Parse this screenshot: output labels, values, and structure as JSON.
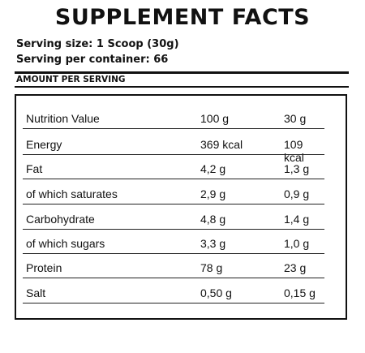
{
  "title": "SUPPLEMENT FACTS",
  "serving_size": "Serving size: 1 Scoop (30g)",
  "serving_per_container": "Serving per container: 66",
  "amount_per_serving": "AMOUNT PER SERVING",
  "table": {
    "header": {
      "name": "Nutrition Value",
      "col1": "100 g",
      "col2": "30 g"
    },
    "rows": [
      {
        "name": "Energy",
        "col1": "369 kcal",
        "col2": "109 kcal"
      },
      {
        "name": "Fat",
        "col1": "4,2 g",
        "col2": "1,3 g"
      },
      {
        "name": "of which saturates",
        "col1": "2,9 g",
        "col2": "0,9 g"
      },
      {
        "name": "Carbohydrate",
        "col1": "4,8 g",
        "col2": "1,4 g"
      },
      {
        "name": "of which sugars",
        "col1": "3,3 g",
        "col2": "1,0 g"
      },
      {
        "name": "Protein",
        "col1": "78 g",
        "col2": "23 g"
      },
      {
        "name": "Salt",
        "col1": "0,50 g",
        "col2": "0,15 g"
      }
    ]
  }
}
